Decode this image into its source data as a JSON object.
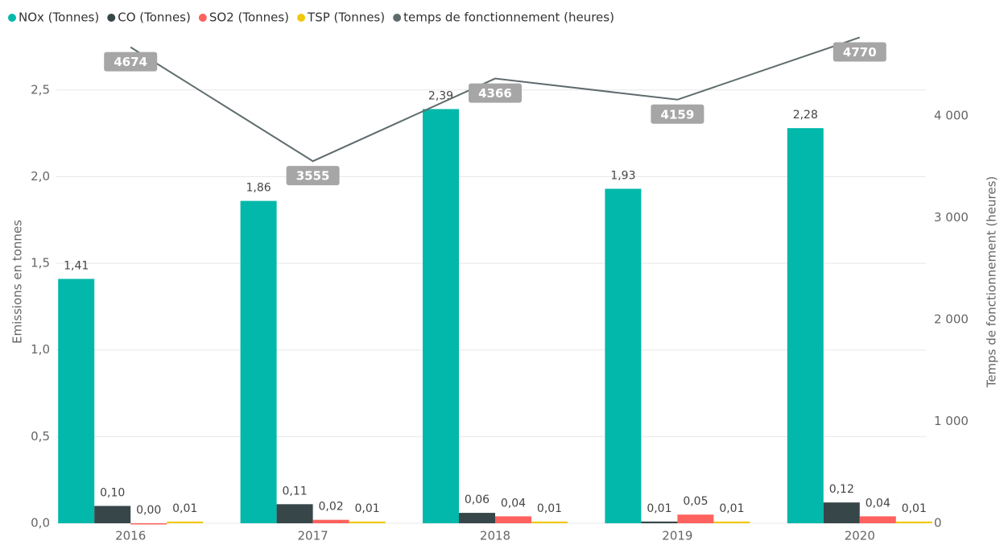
{
  "chart_data": {
    "type": "bar",
    "categories": [
      "2016",
      "2017",
      "2018",
      "2019",
      "2020"
    ],
    "series": [
      {
        "name": "NOx (Tonnes)",
        "color": "#01b8aa",
        "values": [
          1.41,
          1.86,
          2.39,
          1.93,
          2.28
        ],
        "value_labels": [
          "1,41",
          "1,86",
          "2,39",
          "1,93",
          "2,28"
        ]
      },
      {
        "name": "CO (Tonnes)",
        "color": "#374649",
        "values": [
          0.1,
          0.11,
          0.06,
          0.01,
          0.12
        ],
        "value_labels": [
          "0,10",
          "0,11",
          "0,06",
          "0,01",
          "0,12"
        ]
      },
      {
        "name": "SO2 (Tonnes)",
        "color": "#fd625e",
        "values": [
          0.0,
          0.02,
          0.04,
          0.05,
          0.04
        ],
        "value_labels": [
          "0,00",
          "0,02",
          "0,04",
          "0,05",
          "0,04"
        ]
      },
      {
        "name": "TSP (Tonnes)",
        "color": "#f2c80f",
        "values": [
          0.01,
          0.01,
          0.01,
          0.01,
          0.01
        ],
        "value_labels": [
          "0,01",
          "0,01",
          "0,01",
          "0,01",
          "0,01"
        ]
      },
      {
        "name": "temps de fonctionnement (heures)",
        "color": "#5f6b6d",
        "type": "line",
        "axis": "y2",
        "values": [
          4674,
          3555,
          4366,
          4159,
          4770
        ]
      }
    ],
    "y_label": "Emissions en tonnes",
    "y2_label": "Temps de fonctionnement (heures)",
    "ylim": [
      0,
      2.88
    ],
    "yticks": [
      {
        "value": 0,
        "label": "0,0"
      },
      {
        "value": 0.5,
        "label": "0,5"
      },
      {
        "value": 1,
        "label": "1,0"
      },
      {
        "value": 1.5,
        "label": "1,5"
      },
      {
        "value": 2,
        "label": "2,0"
      },
      {
        "value": 2.5,
        "label": "2,5"
      }
    ],
    "y2lim": [
      0,
      4900
    ],
    "y2ticks": [
      0,
      {
        "value": 1000,
        "label": "1 000"
      },
      {
        "value": 2000,
        "label": "2 000"
      },
      {
        "value": 3000,
        "label": "3 000"
      },
      {
        "value": 4000,
        "label": "4 000"
      }
    ],
    "grid": true,
    "legend": "top-left"
  }
}
